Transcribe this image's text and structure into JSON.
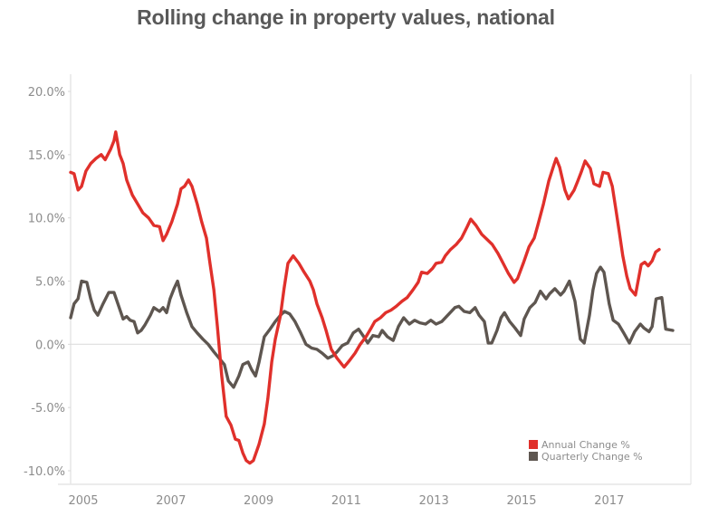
{
  "chart_data": {
    "type": "line",
    "title": "Rolling change in property values, national",
    "xlabel": "",
    "ylabel": "",
    "xlim": [
      2004.7,
      2019.0
    ],
    "ylim": [
      -10,
      20
    ],
    "grid": false,
    "zero_line": true,
    "y_ticks": [
      20,
      15,
      10,
      5,
      0,
      -5,
      -10
    ],
    "y_tick_labels": [
      "20.0%",
      "15.0%",
      "10.0%",
      "5.0%",
      "0.0%",
      "-5.0%",
      "-10.0%"
    ],
    "x_ticks": [
      2005,
      2007,
      2009,
      2011,
      2013,
      2015,
      2017
    ],
    "x_tick_labels": [
      "2005",
      "2007",
      "2009",
      "2011",
      "2013",
      "2015",
      "2017"
    ],
    "legend_position": "bottom-right",
    "series": [
      {
        "name": "Annual Change %",
        "color": "#e0302b",
        "points": [
          [
            2004.71,
            13.6
          ],
          [
            2004.79,
            13.5
          ],
          [
            2004.88,
            12.2
          ],
          [
            2004.96,
            12.5
          ],
          [
            2005.06,
            13.7
          ],
          [
            2005.17,
            14.3
          ],
          [
            2005.29,
            14.7
          ],
          [
            2005.41,
            15.0
          ],
          [
            2005.5,
            14.6
          ],
          [
            2005.62,
            15.4
          ],
          [
            2005.7,
            16.1
          ],
          [
            2005.74,
            16.8
          ],
          [
            2005.83,
            15.0
          ],
          [
            2005.91,
            14.3
          ],
          [
            2005.99,
            13.0
          ],
          [
            2006.12,
            11.8
          ],
          [
            2006.24,
            11.1
          ],
          [
            2006.36,
            10.4
          ],
          [
            2006.49,
            10.0
          ],
          [
            2006.61,
            9.4
          ],
          [
            2006.74,
            9.3
          ],
          [
            2006.82,
            8.2
          ],
          [
            2006.9,
            8.7
          ],
          [
            2007.02,
            9.7
          ],
          [
            2007.15,
            11.1
          ],
          [
            2007.23,
            12.3
          ],
          [
            2007.31,
            12.5
          ],
          [
            2007.4,
            13.0
          ],
          [
            2007.48,
            12.5
          ],
          [
            2007.6,
            11.1
          ],
          [
            2007.7,
            9.7
          ],
          [
            2007.81,
            8.4
          ],
          [
            2007.89,
            6.4
          ],
          [
            2007.98,
            4.3
          ],
          [
            2008.06,
            1.4
          ],
          [
            2008.16,
            -2.5
          ],
          [
            2008.26,
            -5.7
          ],
          [
            2008.37,
            -6.4
          ],
          [
            2008.47,
            -7.5
          ],
          [
            2008.55,
            -7.6
          ],
          [
            2008.64,
            -8.6
          ],
          [
            2008.72,
            -9.2
          ],
          [
            2008.8,
            -9.4
          ],
          [
            2008.88,
            -9.2
          ],
          [
            2009.01,
            -7.9
          ],
          [
            2009.13,
            -6.3
          ],
          [
            2009.21,
            -4.3
          ],
          [
            2009.3,
            -1.4
          ],
          [
            2009.38,
            0.4
          ],
          [
            2009.5,
            2.3
          ],
          [
            2009.58,
            4.4
          ],
          [
            2009.67,
            6.4
          ],
          [
            2009.79,
            7.0
          ],
          [
            2009.92,
            6.4
          ],
          [
            2010.04,
            5.7
          ],
          [
            2010.17,
            5.0
          ],
          [
            2010.25,
            4.3
          ],
          [
            2010.33,
            3.2
          ],
          [
            2010.45,
            2.1
          ],
          [
            2010.54,
            1.1
          ],
          [
            2010.66,
            -0.4
          ],
          [
            2010.79,
            -1.1
          ],
          [
            2010.95,
            -1.8
          ],
          [
            2011.07,
            -1.3
          ],
          [
            2011.2,
            -0.7
          ],
          [
            2011.32,
            0.0
          ],
          [
            2011.45,
            0.6
          ],
          [
            2011.57,
            1.3
          ],
          [
            2011.65,
            1.8
          ],
          [
            2011.78,
            2.1
          ],
          [
            2011.9,
            2.5
          ],
          [
            2012.02,
            2.7
          ],
          [
            2012.14,
            3.0
          ],
          [
            2012.27,
            3.4
          ],
          [
            2012.39,
            3.7
          ],
          [
            2012.52,
            4.3
          ],
          [
            2012.64,
            4.9
          ],
          [
            2012.72,
            5.7
          ],
          [
            2012.85,
            5.6
          ],
          [
            2012.97,
            6.0
          ],
          [
            2013.05,
            6.4
          ],
          [
            2013.18,
            6.5
          ],
          [
            2013.26,
            7.0
          ],
          [
            2013.38,
            7.5
          ],
          [
            2013.51,
            7.9
          ],
          [
            2013.63,
            8.4
          ],
          [
            2013.76,
            9.3
          ],
          [
            2013.84,
            9.9
          ],
          [
            2013.96,
            9.4
          ],
          [
            2014.09,
            8.7
          ],
          [
            2014.21,
            8.3
          ],
          [
            2014.33,
            7.9
          ],
          [
            2014.46,
            7.2
          ],
          [
            2014.58,
            6.4
          ],
          [
            2014.7,
            5.6
          ],
          [
            2014.83,
            4.9
          ],
          [
            2014.91,
            5.2
          ],
          [
            2015.04,
            6.4
          ],
          [
            2015.17,
            7.7
          ],
          [
            2015.29,
            8.4
          ],
          [
            2015.37,
            9.4
          ],
          [
            2015.5,
            11.1
          ],
          [
            2015.62,
            12.9
          ],
          [
            2015.74,
            14.2
          ],
          [
            2015.79,
            14.7
          ],
          [
            2015.87,
            14.0
          ],
          [
            2015.99,
            12.2
          ],
          [
            2016.07,
            11.5
          ],
          [
            2016.2,
            12.2
          ],
          [
            2016.28,
            12.9
          ],
          [
            2016.36,
            13.6
          ],
          [
            2016.45,
            14.5
          ],
          [
            2016.57,
            13.9
          ],
          [
            2016.65,
            12.7
          ],
          [
            2016.78,
            12.5
          ],
          [
            2016.86,
            13.6
          ],
          [
            2016.98,
            13.5
          ],
          [
            2017.07,
            12.5
          ],
          [
            2017.15,
            10.7
          ],
          [
            2017.23,
            8.9
          ],
          [
            2017.31,
            7.0
          ],
          [
            2017.4,
            5.4
          ],
          [
            2017.48,
            4.4
          ],
          [
            2017.6,
            3.9
          ],
          [
            2017.73,
            6.3
          ],
          [
            2017.81,
            6.5
          ],
          [
            2017.89,
            6.2
          ],
          [
            2017.98,
            6.6
          ],
          [
            2018.06,
            7.3
          ],
          [
            2018.14,
            7.5
          ]
        ]
      },
      {
        "name": "Quarterly Change %",
        "color": "#5e5650",
        "points": [
          [
            2004.71,
            2.1
          ],
          [
            2004.79,
            3.2
          ],
          [
            2004.88,
            3.6
          ],
          [
            2004.96,
            5.0
          ],
          [
            2005.08,
            4.9
          ],
          [
            2005.17,
            3.6
          ],
          [
            2005.25,
            2.7
          ],
          [
            2005.33,
            2.3
          ],
          [
            2005.45,
            3.2
          ],
          [
            2005.58,
            4.1
          ],
          [
            2005.7,
            4.1
          ],
          [
            2005.79,
            3.2
          ],
          [
            2005.91,
            2.0
          ],
          [
            2005.99,
            2.2
          ],
          [
            2006.07,
            1.9
          ],
          [
            2006.16,
            1.8
          ],
          [
            2006.24,
            0.9
          ],
          [
            2006.32,
            1.1
          ],
          [
            2006.4,
            1.5
          ],
          [
            2006.53,
            2.3
          ],
          [
            2006.61,
            2.9
          ],
          [
            2006.74,
            2.6
          ],
          [
            2006.82,
            2.9
          ],
          [
            2006.9,
            2.5
          ],
          [
            2006.98,
            3.6
          ],
          [
            2007.07,
            4.4
          ],
          [
            2007.15,
            5.0
          ],
          [
            2007.23,
            3.9
          ],
          [
            2007.36,
            2.5
          ],
          [
            2007.48,
            1.4
          ],
          [
            2007.6,
            0.9
          ],
          [
            2007.73,
            0.4
          ],
          [
            2007.85,
            0.0
          ],
          [
            2007.98,
            -0.6
          ],
          [
            2008.1,
            -1.1
          ],
          [
            2008.22,
            -1.6
          ],
          [
            2008.31,
            -2.9
          ],
          [
            2008.43,
            -3.4
          ],
          [
            2008.55,
            -2.5
          ],
          [
            2008.64,
            -1.6
          ],
          [
            2008.76,
            -1.4
          ],
          [
            2008.84,
            -2.0
          ],
          [
            2008.93,
            -2.5
          ],
          [
            2009.01,
            -1.4
          ],
          [
            2009.13,
            0.6
          ],
          [
            2009.26,
            1.2
          ],
          [
            2009.38,
            1.8
          ],
          [
            2009.5,
            2.3
          ],
          [
            2009.59,
            2.6
          ],
          [
            2009.71,
            2.4
          ],
          [
            2009.83,
            1.8
          ],
          [
            2009.96,
            0.9
          ],
          [
            2010.08,
            0.0
          ],
          [
            2010.21,
            -0.3
          ],
          [
            2010.33,
            -0.4
          ],
          [
            2010.45,
            -0.7
          ],
          [
            2010.58,
            -1.1
          ],
          [
            2010.7,
            -0.9
          ],
          [
            2010.79,
            -0.6
          ],
          [
            2010.91,
            -0.1
          ],
          [
            2011.03,
            0.1
          ],
          [
            2011.16,
            0.9
          ],
          [
            2011.28,
            1.2
          ],
          [
            2011.4,
            0.6
          ],
          [
            2011.49,
            0.1
          ],
          [
            2011.61,
            0.7
          ],
          [
            2011.74,
            0.6
          ],
          [
            2011.82,
            1.1
          ],
          [
            2011.94,
            0.6
          ],
          [
            2012.07,
            0.3
          ],
          [
            2012.19,
            1.4
          ],
          [
            2012.31,
            2.1
          ],
          [
            2012.44,
            1.6
          ],
          [
            2012.56,
            1.9
          ],
          [
            2012.68,
            1.7
          ],
          [
            2012.81,
            1.6
          ],
          [
            2012.93,
            1.9
          ],
          [
            2013.05,
            1.6
          ],
          [
            2013.18,
            1.8
          ],
          [
            2013.48,
            2.9
          ],
          [
            2013.57,
            3.0
          ],
          [
            2013.69,
            2.6
          ],
          [
            2013.82,
            2.5
          ],
          [
            2013.94,
            2.9
          ],
          [
            2014.03,
            2.3
          ],
          [
            2014.15,
            1.8
          ],
          [
            2014.24,
            0.1
          ],
          [
            2014.32,
            0.1
          ],
          [
            2014.44,
            1.1
          ],
          [
            2014.53,
            2.1
          ],
          [
            2014.61,
            2.5
          ],
          [
            2014.73,
            1.8
          ],
          [
            2014.85,
            1.3
          ],
          [
            2014.98,
            0.7
          ],
          [
            2015.06,
            2.0
          ],
          [
            2015.19,
            2.9
          ],
          [
            2015.31,
            3.3
          ],
          [
            2015.43,
            4.2
          ],
          [
            2015.56,
            3.6
          ],
          [
            2015.64,
            4.0
          ],
          [
            2015.76,
            4.4
          ],
          [
            2015.89,
            3.9
          ],
          [
            2015.97,
            4.2
          ],
          [
            2016.09,
            5.0
          ],
          [
            2016.22,
            3.4
          ],
          [
            2016.34,
            0.4
          ],
          [
            2016.43,
            0.1
          ],
          [
            2016.55,
            2.3
          ],
          [
            2016.63,
            4.3
          ],
          [
            2016.71,
            5.6
          ],
          [
            2016.8,
            6.1
          ],
          [
            2016.88,
            5.7
          ],
          [
            2017.0,
            3.2
          ],
          [
            2017.09,
            1.9
          ],
          [
            2017.21,
            1.6
          ],
          [
            2017.33,
            0.9
          ],
          [
            2017.46,
            0.1
          ],
          [
            2017.58,
            1.0
          ],
          [
            2017.71,
            1.6
          ],
          [
            2017.79,
            1.3
          ],
          [
            2017.91,
            1.0
          ],
          [
            2017.98,
            1.4
          ],
          [
            2018.07,
            3.6
          ],
          [
            2018.2,
            3.7
          ],
          [
            2018.29,
            1.2
          ],
          [
            2018.45,
            1.1
          ]
        ]
      }
    ]
  }
}
